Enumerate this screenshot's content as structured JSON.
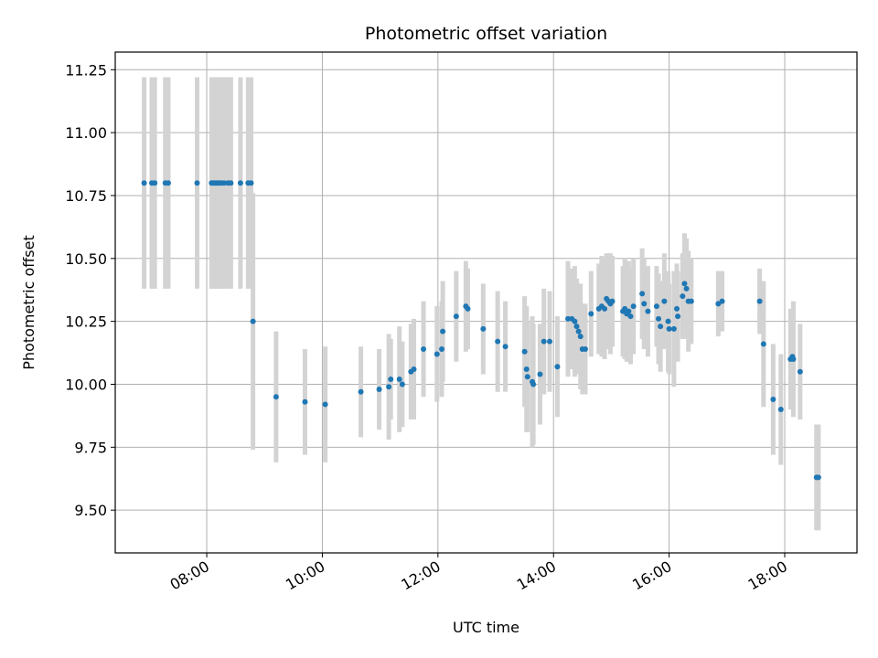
{
  "chart_data": {
    "type": "scatter",
    "title": "Photometric offset variation",
    "xlabel": "UTC time",
    "ylabel": "Photometric offset",
    "grid": true,
    "xlim": [
      "06:25",
      "19:15"
    ],
    "ylim": [
      9.33,
      11.32
    ],
    "x_ticks": [
      "08:00",
      "10:00",
      "12:00",
      "14:00",
      "16:00",
      "18:00"
    ],
    "y_ticks": [
      "9.50",
      "9.75",
      "10.00",
      "10.25",
      "10.50",
      "10.75",
      "11.00",
      "11.25"
    ],
    "colors": {
      "point": "#1f77b4",
      "errorbar": "#d3d3d3",
      "grid": "#b0b0b0"
    },
    "series": [
      {
        "points": [
          {
            "t": "06:55",
            "y": 10.8,
            "err": 0.42
          },
          {
            "t": "07:03",
            "y": 10.8,
            "err": 0.42
          },
          {
            "t": "07:06",
            "y": 10.8,
            "err": 0.42
          },
          {
            "t": "07:17",
            "y": 10.8,
            "err": 0.42
          },
          {
            "t": "07:20",
            "y": 10.8,
            "err": 0.42
          },
          {
            "t": "07:50",
            "y": 10.8,
            "err": 0.42
          },
          {
            "t": "08:05",
            "y": 10.8,
            "err": 0.42
          },
          {
            "t": "08:07",
            "y": 10.8,
            "err": 0.42
          },
          {
            "t": "08:09",
            "y": 10.8,
            "err": 0.42
          },
          {
            "t": "08:11",
            "y": 10.8,
            "err": 0.42
          },
          {
            "t": "08:13",
            "y": 10.8,
            "err": 0.42
          },
          {
            "t": "08:15",
            "y": 10.8,
            "err": 0.42
          },
          {
            "t": "08:18",
            "y": 10.8,
            "err": 0.42
          },
          {
            "t": "08:22",
            "y": 10.8,
            "err": 0.42
          },
          {
            "t": "08:25",
            "y": 10.8,
            "err": 0.42
          },
          {
            "t": "08:35",
            "y": 10.8,
            "err": 0.42
          },
          {
            "t": "08:43",
            "y": 10.8,
            "err": 0.42
          },
          {
            "t": "08:46",
            "y": 10.8,
            "err": 0.42
          },
          {
            "t": "08:48",
            "y": 10.25,
            "err": 0.51
          },
          {
            "t": "09:12",
            "y": 9.95,
            "err": 0.26
          },
          {
            "t": "09:42",
            "y": 9.93,
            "err": 0.21
          },
          {
            "t": "10:03",
            "y": 9.92,
            "err": 0.23
          },
          {
            "t": "10:40",
            "y": 9.97,
            "err": 0.18
          },
          {
            "t": "10:59",
            "y": 9.98,
            "err": 0.16
          },
          {
            "t": "11:09",
            "y": 9.99,
            "err": 0.21
          },
          {
            "t": "11:11",
            "y": 10.02,
            "err": 0.16
          },
          {
            "t": "11:20",
            "y": 10.02,
            "err": 0.21
          },
          {
            "t": "11:23",
            "y": 10.0,
            "err": 0.17
          },
          {
            "t": "11:32",
            "y": 10.05,
            "err": 0.19
          },
          {
            "t": "11:35",
            "y": 10.06,
            "err": 0.2
          },
          {
            "t": "11:45",
            "y": 10.14,
            "err": 0.19
          },
          {
            "t": "11:59",
            "y": 10.12,
            "err": 0.19
          },
          {
            "t": "12:04",
            "y": 10.14,
            "err": 0.19
          },
          {
            "t": "12:05",
            "y": 10.21,
            "err": 0.2
          },
          {
            "t": "12:19",
            "y": 10.27,
            "err": 0.18
          },
          {
            "t": "12:29",
            "y": 10.31,
            "err": 0.18
          },
          {
            "t": "12:31",
            "y": 10.3,
            "err": 0.16
          },
          {
            "t": "12:47",
            "y": 10.22,
            "err": 0.18
          },
          {
            "t": "13:02",
            "y": 10.17,
            "err": 0.2
          },
          {
            "t": "13:10",
            "y": 10.15,
            "err": 0.18
          },
          {
            "t": "13:30",
            "y": 10.13,
            "err": 0.22
          },
          {
            "t": "13:32",
            "y": 10.06,
            "err": 0.25
          },
          {
            "t": "13:33",
            "y": 10.03,
            "err": 0.22
          },
          {
            "t": "13:38",
            "y": 10.01,
            "err": 0.26
          },
          {
            "t": "13:39",
            "y": 10.0,
            "err": 0.24
          },
          {
            "t": "13:46",
            "y": 10.04,
            "err": 0.2
          },
          {
            "t": "13:50",
            "y": 10.17,
            "err": 0.21
          },
          {
            "t": "13:56",
            "y": 10.17,
            "err": 0.2
          },
          {
            "t": "14:04",
            "y": 10.07,
            "err": 0.2
          },
          {
            "t": "14:15",
            "y": 10.26,
            "err": 0.23
          },
          {
            "t": "14:19",
            "y": 10.26,
            "err": 0.2
          },
          {
            "t": "14:22",
            "y": 10.25,
            "err": 0.22
          },
          {
            "t": "14:24",
            "y": 10.23,
            "err": 0.19
          },
          {
            "t": "14:26",
            "y": 10.21,
            "err": 0.17
          },
          {
            "t": "14:28",
            "y": 10.19,
            "err": 0.21
          },
          {
            "t": "14:30",
            "y": 10.14,
            "err": 0.18
          },
          {
            "t": "14:33",
            "y": 10.14,
            "err": 0.18
          },
          {
            "t": "14:39",
            "y": 10.28,
            "err": 0.17
          },
          {
            "t": "14:47",
            "y": 10.3,
            "err": 0.18
          },
          {
            "t": "14:50",
            "y": 10.31,
            "err": 0.2
          },
          {
            "t": "14:53",
            "y": 10.3,
            "err": 0.2
          },
          {
            "t": "14:55",
            "y": 10.34,
            "err": 0.18
          },
          {
            "t": "14:57",
            "y": 10.33,
            "err": 0.19
          },
          {
            "t": "14:59",
            "y": 10.32,
            "err": 0.2
          },
          {
            "t": "15:01",
            "y": 10.33,
            "err": 0.18
          },
          {
            "t": "15:12",
            "y": 10.29,
            "err": 0.18
          },
          {
            "t": "15:14",
            "y": 10.3,
            "err": 0.2
          },
          {
            "t": "15:16",
            "y": 10.28,
            "err": 0.19
          },
          {
            "t": "15:18",
            "y": 10.29,
            "err": 0.2
          },
          {
            "t": "15:20",
            "y": 10.27,
            "err": 0.19
          },
          {
            "t": "15:23",
            "y": 10.31,
            "err": 0.19
          },
          {
            "t": "15:32",
            "y": 10.36,
            "err": 0.18
          },
          {
            "t": "15:34",
            "y": 10.32,
            "err": 0.18
          },
          {
            "t": "15:38",
            "y": 10.29,
            "err": 0.18
          },
          {
            "t": "15:47",
            "y": 10.31,
            "err": 0.16
          },
          {
            "t": "15:49",
            "y": 10.26,
            "err": 0.18
          },
          {
            "t": "15:51",
            "y": 10.23,
            "err": 0.18
          },
          {
            "t": "15:55",
            "y": 10.33,
            "err": 0.19
          },
          {
            "t": "15:59",
            "y": 10.25,
            "err": 0.2
          },
          {
            "t": "16:00",
            "y": 10.22,
            "err": 0.18
          },
          {
            "t": "16:05",
            "y": 10.22,
            "err": 0.23
          },
          {
            "t": "16:08",
            "y": 10.3,
            "err": 0.18
          },
          {
            "t": "16:09",
            "y": 10.27,
            "err": 0.18
          },
          {
            "t": "16:14",
            "y": 10.35,
            "err": 0.17
          },
          {
            "t": "16:16",
            "y": 10.4,
            "err": 0.2
          },
          {
            "t": "16:18",
            "y": 10.38,
            "err": 0.2
          },
          {
            "t": "16:20",
            "y": 10.33,
            "err": 0.2
          },
          {
            "t": "16:23",
            "y": 10.33,
            "err": 0.17
          },
          {
            "t": "16:51",
            "y": 10.32,
            "err": 0.13
          },
          {
            "t": "16:55",
            "y": 10.33,
            "err": 0.12
          },
          {
            "t": "17:34",
            "y": 10.33,
            "err": 0.13
          },
          {
            "t": "17:38",
            "y": 10.16,
            "err": 0.25
          },
          {
            "t": "17:48",
            "y": 9.94,
            "err": 0.22
          },
          {
            "t": "17:56",
            "y": 9.9,
            "err": 0.22
          },
          {
            "t": "18:06",
            "y": 10.1,
            "err": 0.2
          },
          {
            "t": "18:08",
            "y": 10.11,
            "err": 0.19
          },
          {
            "t": "18:09",
            "y": 10.1,
            "err": 0.23
          },
          {
            "t": "18:16",
            "y": 10.05,
            "err": 0.19
          },
          {
            "t": "18:33",
            "y": 9.63,
            "err": 0.21
          },
          {
            "t": "18:35",
            "y": 9.63,
            "err": 0.21
          }
        ]
      }
    ]
  }
}
